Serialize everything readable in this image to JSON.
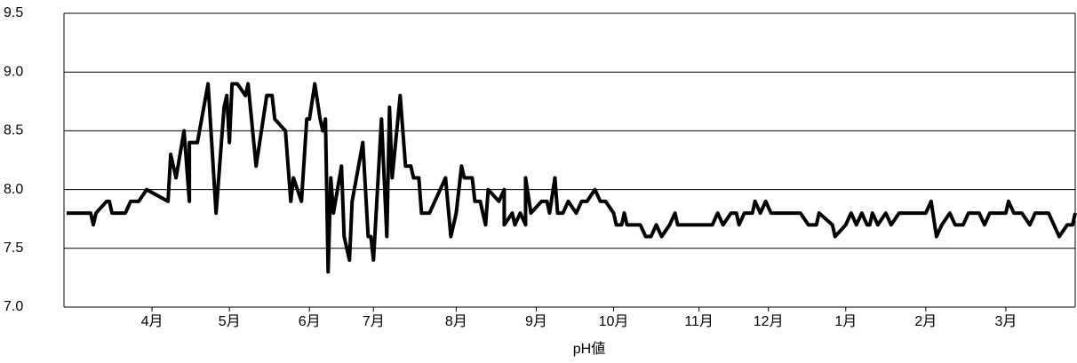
{
  "chart_data": {
    "type": "line",
    "x_label": "pH値",
    "x": [
      1,
      10,
      11,
      12,
      16,
      17,
      18,
      23,
      25,
      28,
      31,
      39,
      40,
      42,
      45,
      47,
      47,
      50,
      54,
      57,
      60,
      61,
      62,
      63,
      65,
      68,
      69,
      72,
      76,
      78,
      79,
      83,
      85,
      86,
      89,
      91,
      92,
      94,
      96,
      97,
      98,
      99,
      100,
      101,
      104,
      105,
      107,
      108,
      112,
      114,
      115,
      116,
      119,
      121,
      122,
      123,
      126,
      128,
      130,
      131,
      133,
      134,
      137,
      143,
      145,
      147,
      149,
      150,
      153,
      154,
      156,
      158,
      159,
      163,
      165,
      165,
      168,
      169,
      171,
      173,
      173,
      175,
      179,
      181,
      182,
      184,
      185,
      187,
      189,
      192,
      194,
      196,
      199,
      201,
      203,
      206,
      207,
      209,
      210,
      211,
      216,
      218,
      220,
      222,
      224,
      227,
      229,
      230,
      241,
      243,
      245,
      247,
      250,
      252,
      253,
      255,
      258,
      259,
      261,
      263,
      265,
      276,
      279,
      282,
      283,
      288,
      289,
      293,
      295,
      297,
      299,
      301,
      302,
      303,
      305,
      308,
      310,
      313,
      323,
      325,
      327,
      329,
      332,
      334,
      337,
      339,
      343,
      345,
      347,
      353,
      354,
      356,
      359,
      362,
      364,
      369,
      371,
      373,
      376,
      378,
      379
    ],
    "series": [
      {
        "color": "#000000",
        "values": [
          7.8,
          7.8,
          7.7,
          7.8,
          7.9,
          7.9,
          7.8,
          7.8,
          7.9,
          7.9,
          8.0,
          7.9,
          8.3,
          8.1,
          8.5,
          7.9,
          8.4,
          8.4,
          8.9,
          7.8,
          8.7,
          8.8,
          8.4,
          8.9,
          8.9,
          8.8,
          8.9,
          8.2,
          8.8,
          8.8,
          8.6,
          8.5,
          7.9,
          8.1,
          7.9,
          8.6,
          8.6,
          8.9,
          8.6,
          8.5,
          8.6,
          7.3,
          8.1,
          7.8,
          8.2,
          7.6,
          7.4,
          7.9,
          8.4,
          7.6,
          7.6,
          7.4,
          8.6,
          7.6,
          8.7,
          8.1,
          8.8,
          8.2,
          8.2,
          8.1,
          8.1,
          7.8,
          7.8,
          8.1,
          7.6,
          7.8,
          8.2,
          8.1,
          8.1,
          7.9,
          7.9,
          7.7,
          8.0,
          7.9,
          8.0,
          7.7,
          7.8,
          7.7,
          7.8,
          7.7,
          8.1,
          7.8,
          7.9,
          7.9,
          7.8,
          8.1,
          7.8,
          7.8,
          7.9,
          7.8,
          7.9,
          7.9,
          8.0,
          7.9,
          7.9,
          7.8,
          7.7,
          7.7,
          7.8,
          7.7,
          7.7,
          7.6,
          7.6,
          7.7,
          7.6,
          7.7,
          7.8,
          7.7,
          7.7,
          7.7,
          7.8,
          7.7,
          7.8,
          7.8,
          7.7,
          7.8,
          7.8,
          7.9,
          7.8,
          7.9,
          7.8,
          7.8,
          7.7,
          7.7,
          7.8,
          7.7,
          7.6,
          7.7,
          7.8,
          7.7,
          7.8,
          7.7,
          7.7,
          7.8,
          7.7,
          7.8,
          7.7,
          7.8,
          7.8,
          7.9,
          7.6,
          7.7,
          7.8,
          7.7,
          7.7,
          7.8,
          7.8,
          7.7,
          7.8,
          7.8,
          7.9,
          7.8,
          7.8,
          7.7,
          7.8,
          7.8,
          7.7,
          7.6,
          7.7,
          7.7,
          7.8
        ]
      }
    ],
    "xlim": [
      0,
      379
    ],
    "xticks": [
      {
        "value": 33,
        "label": "4月"
      },
      {
        "value": 62,
        "label": "5月"
      },
      {
        "value": 92,
        "label": "6月"
      },
      {
        "value": 116,
        "label": "7月"
      },
      {
        "value": 147,
        "label": "8月"
      },
      {
        "value": 177,
        "label": "9月"
      },
      {
        "value": 206,
        "label": "10月"
      },
      {
        "value": 238,
        "label": "11月"
      },
      {
        "value": 264,
        "label": "12月"
      },
      {
        "value": 293,
        "label": "1月"
      },
      {
        "value": 323,
        "label": "2月"
      },
      {
        "value": 353,
        "label": "3月"
      }
    ],
    "ylim": [
      7,
      9.5
    ],
    "yticks": [
      {
        "value": 7,
        "label": "7.0"
      },
      7.5,
      {
        "value": 8,
        "label": "8.0"
      },
      8.5,
      {
        "value": 9,
        "label": "9.0"
      },
      9.5
    ],
    "grid": true
  }
}
